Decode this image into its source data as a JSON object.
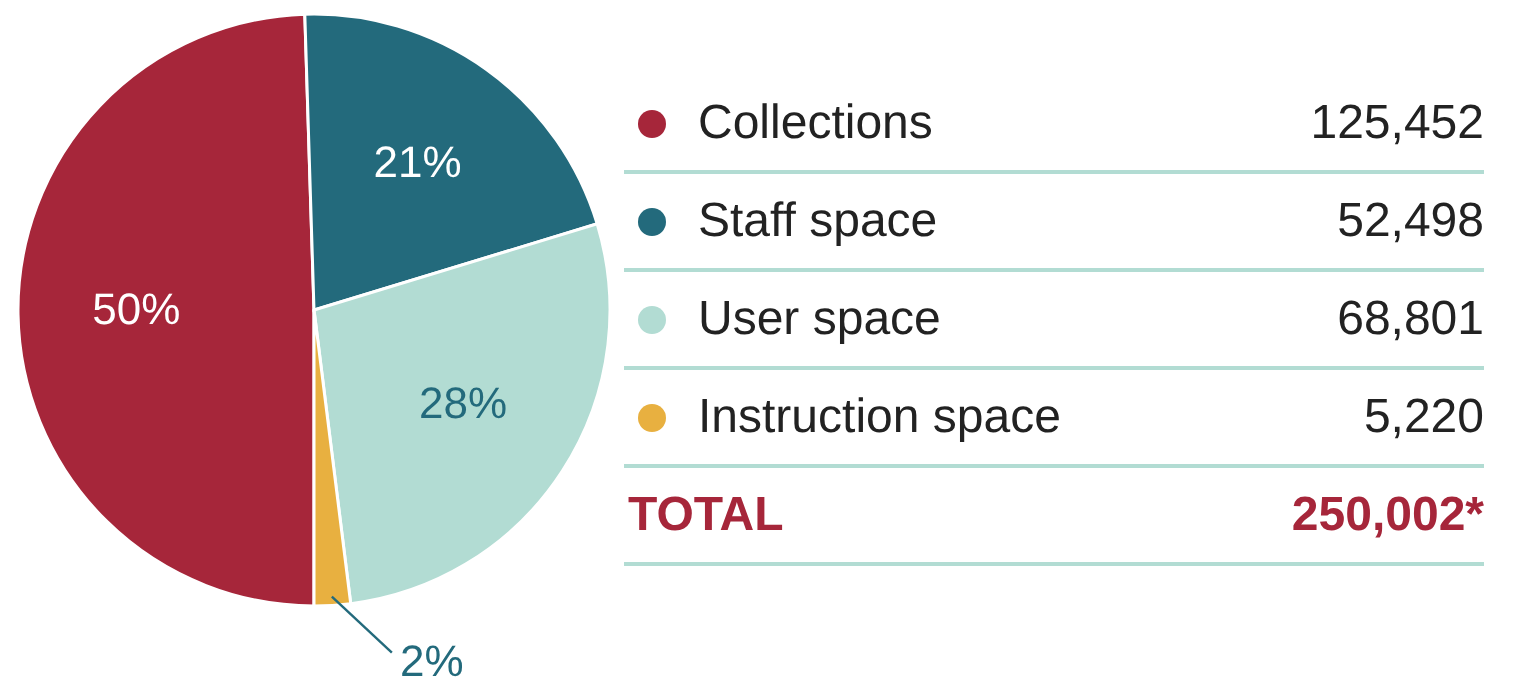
{
  "chart_data": {
    "type": "pie",
    "categories": [
      "Collections",
      "Staff space",
      "User space",
      "Instruction space"
    ],
    "values": [
      50,
      21,
      28,
      2
    ],
    "colors": [
      "#a6263a",
      "#236a7c",
      "#b2dcd3",
      "#e8b040"
    ],
    "value_labels": [
      "50%",
      "21%",
      "28%",
      "2%"
    ],
    "legend": "right",
    "annotations": [
      "125,452",
      "52,498",
      "68,801",
      "5,220",
      "TOTAL",
      "250,002*"
    ]
  }
}
